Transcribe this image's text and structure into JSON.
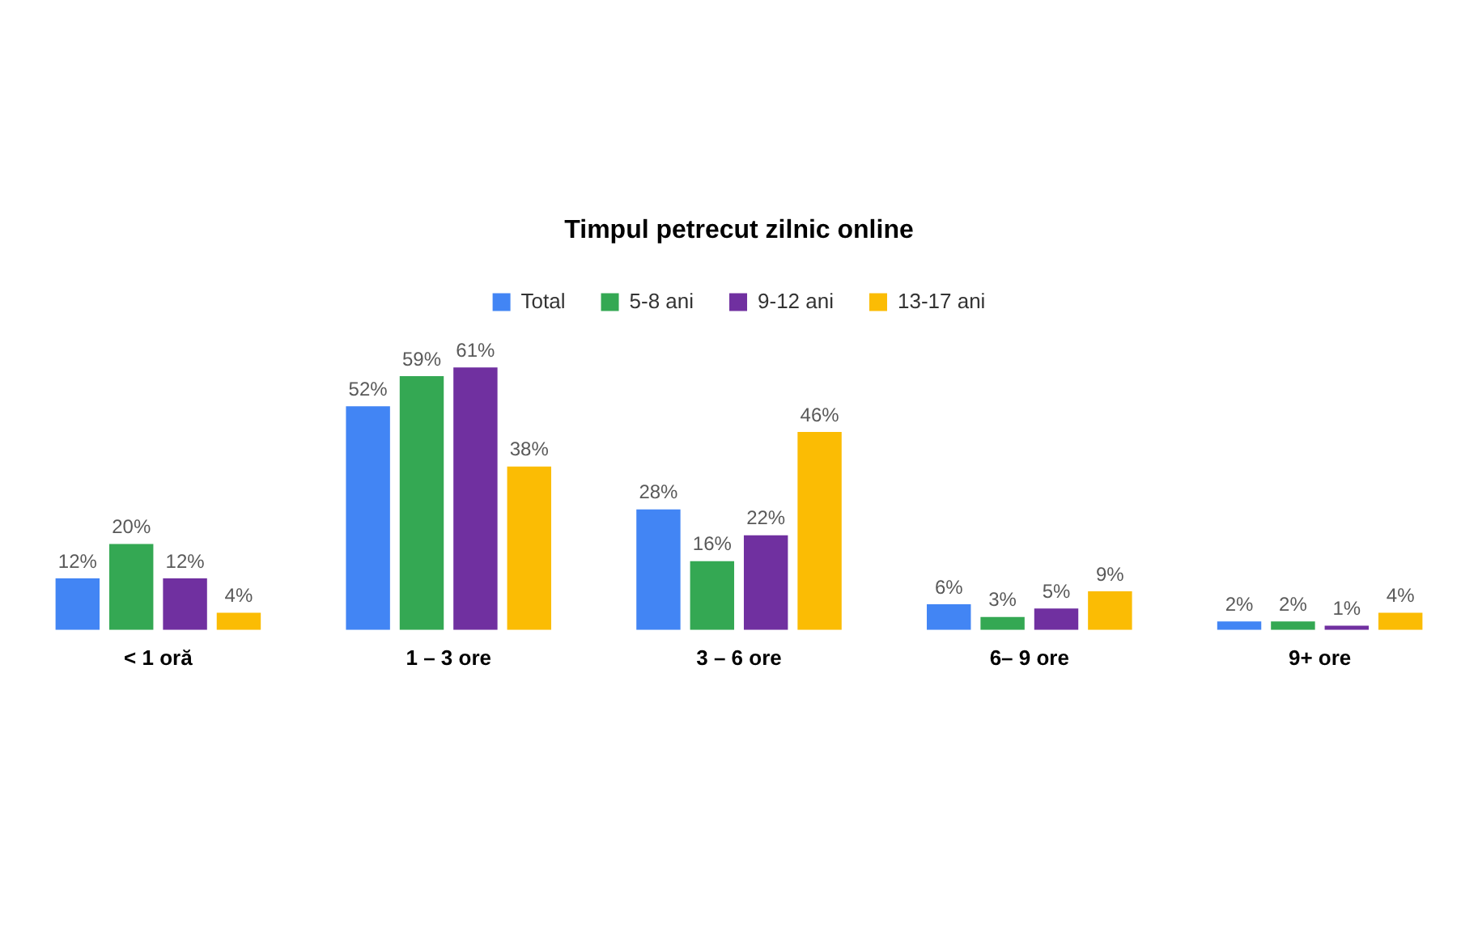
{
  "chart_data": {
    "type": "bar",
    "title": "Timpul petrecut zilnic online",
    "categories": [
      "< 1 oră",
      "1 – 3 ore",
      "3 – 6 ore",
      "6– 9 ore",
      "9+ ore"
    ],
    "series": [
      {
        "name": "Total",
        "color": "#4285f4",
        "values": [
          12,
          52,
          28,
          6,
          2
        ],
        "value_labels": [
          "12%",
          "52%",
          "28%",
          "6%",
          "2%"
        ]
      },
      {
        "name": "5-8 ani",
        "color": "#34a853",
        "values": [
          20,
          59,
          16,
          3,
          2
        ],
        "value_labels": [
          "20%",
          "59%",
          "16%",
          "3%",
          "2%"
        ]
      },
      {
        "name": "9-12 ani",
        "color": "#7030a0",
        "values": [
          12,
          61,
          22,
          5,
          1
        ],
        "value_labels": [
          "12%",
          "61%",
          "22%",
          "5%",
          "1%"
        ]
      },
      {
        "name": "13-17 ani",
        "color": "#fbbc04",
        "values": [
          4,
          38,
          46,
          9,
          4
        ],
        "value_labels": [
          "4%",
          "38%",
          "46%",
          "9%",
          "4%"
        ]
      }
    ],
    "legend": "top",
    "grid": false
  }
}
